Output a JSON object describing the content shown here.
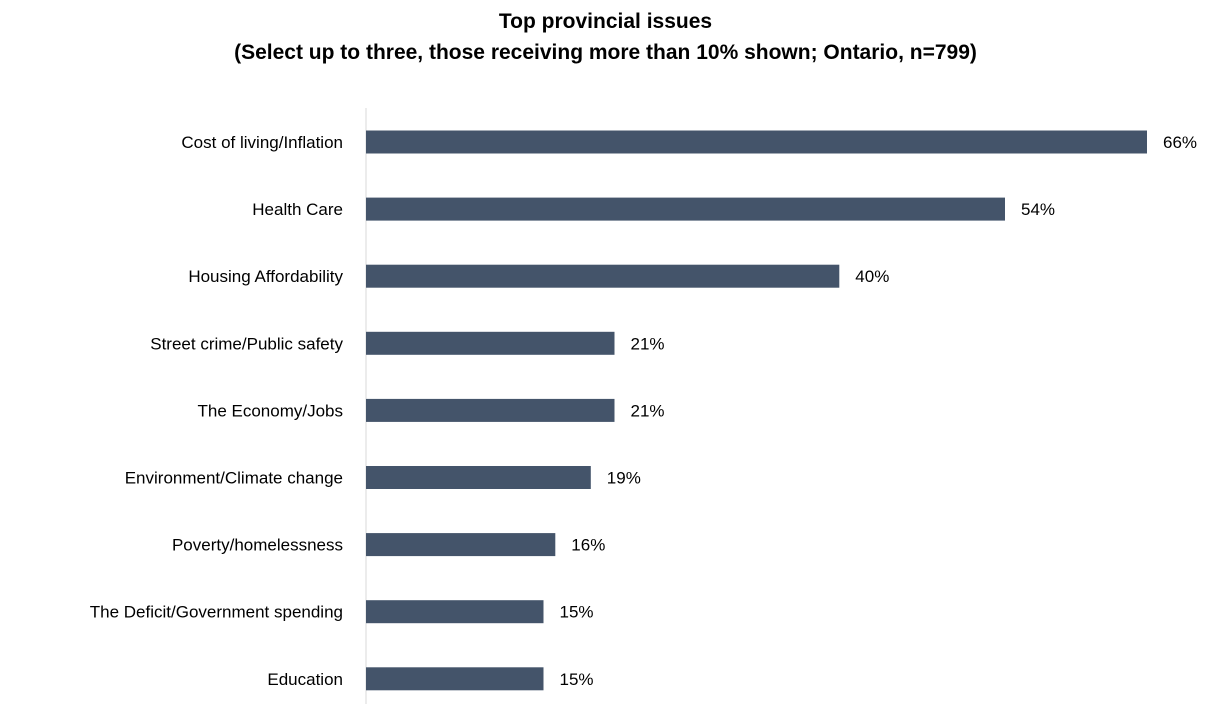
{
  "chart_data": {
    "type": "bar",
    "orientation": "horizontal",
    "title": "Top provincial issues",
    "subtitle": "(Select up to three, those receiving more than 10% shown; Ontario, n=799)",
    "categories": [
      "Cost of living/Inflation",
      "Health Care",
      "Housing Affordability",
      "Street crime/Public safety",
      "The Economy/Jobs",
      "Environment/Climate change",
      "Poverty/homelessness",
      "The Deficit/Government spending",
      "Education"
    ],
    "values": [
      66,
      54,
      40,
      21,
      21,
      19,
      16,
      15,
      15
    ],
    "data_labels": [
      "66%",
      "54%",
      "40%",
      "21%",
      "21%",
      "19%",
      "16%",
      "15%",
      "15%"
    ],
    "bar_color": "#44546a",
    "axis_color": "#d9d9d9",
    "xlim": [
      0,
      66
    ],
    "grid": false,
    "legend": "none"
  }
}
